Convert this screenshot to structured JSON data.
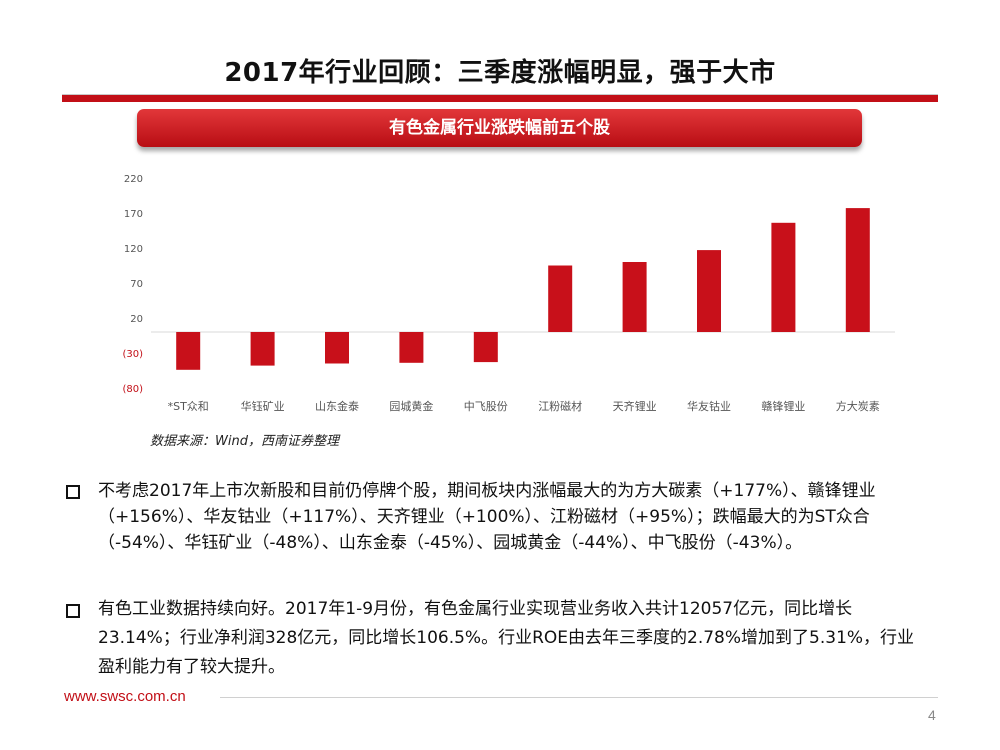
{
  "slide": {
    "title": "2017年行业回顾：三季度涨幅明显，强于大市",
    "banner": "有色金属行业涨跌幅前五个股",
    "source": "数据来源：Wind，西南证券整理",
    "bullets": [
      "不考虑2017年上市次新股和目前仍停牌个股，期间板块内涨幅最大的为方大碳素（+177%）、赣锋锂业（+156%）、华友钴业（+117%）、天齐锂业（+100%）、江粉磁材（+95%）；跌幅最大的为ST众合（-54%）、华钰矿业（-48%）、山东金泰（-45%）、园城黄金（-44%）、中飞股份（-43%）。",
      "有色工业数据持续向好。2017年1-9月份，有色金属行业实现营业务收入共计12057亿元，同比增长23.14%；行业净利润328亿元，同比增长106.5%。行业ROE由去年三季度的2.78%增加到了5.31%，行业盈利能力有了较大提升。"
    ],
    "footer_url": "www.swsc.com.cn",
    "page_number": "4"
  },
  "colors": {
    "accent": "#c20f17",
    "bar": "#c8101a",
    "negative_tick": "#c20f17"
  },
  "chart_data": {
    "type": "bar",
    "categories": [
      "*ST众和",
      "华钰矿业",
      "山东金泰",
      "园城黄金",
      "中飞股份",
      "江粉磁材",
      "天齐锂业",
      "华友钴业",
      "赣锋锂业",
      "方大炭素"
    ],
    "values": [
      -54,
      -48,
      -45,
      -44,
      -43,
      95,
      100,
      117,
      156,
      177
    ],
    "ylim": [
      -80,
      220
    ],
    "yticks": [
      220,
      170,
      120,
      70,
      20,
      -30,
      -80
    ],
    "ytick_labels": [
      "220",
      "170",
      "120",
      "70",
      "20",
      "(30)",
      "(80)"
    ],
    "grid": false,
    "legend": false
  }
}
